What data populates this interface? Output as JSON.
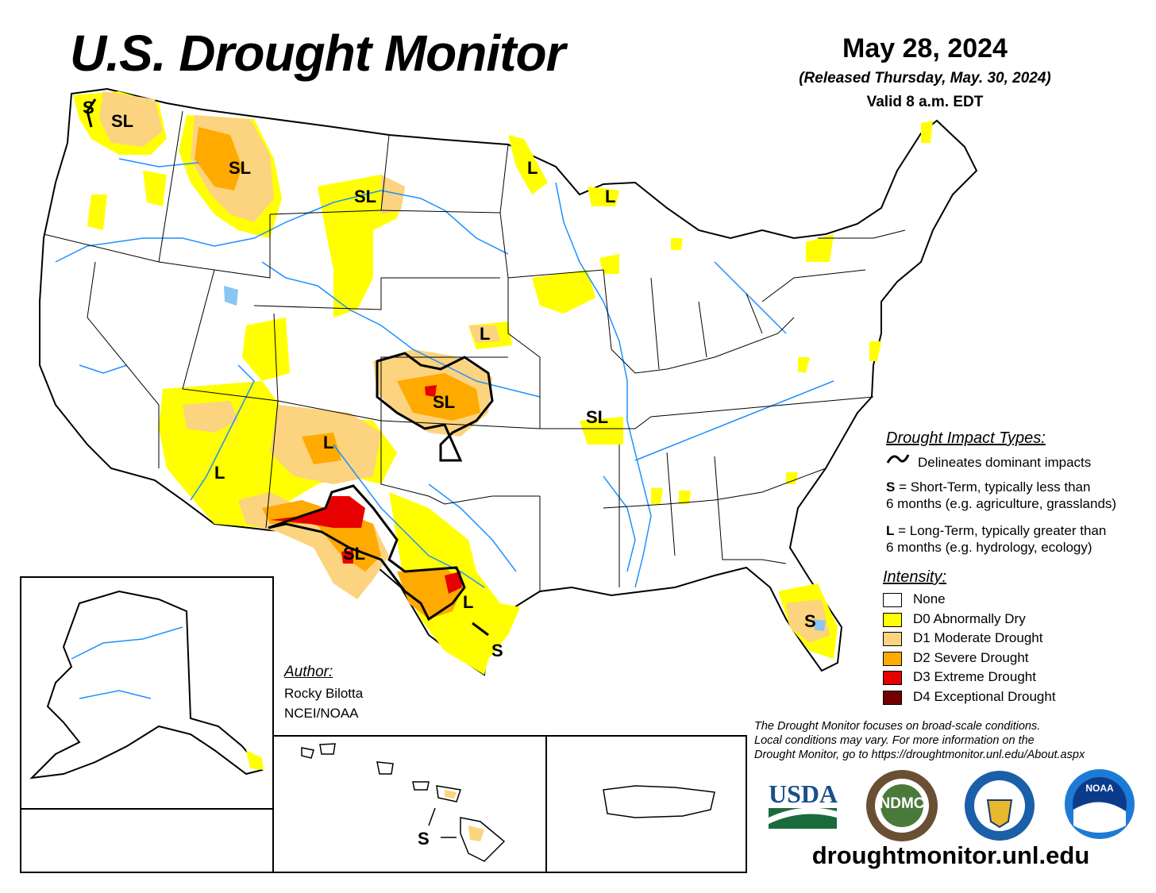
{
  "header": {
    "title": "U.S. Drought Monitor",
    "date": "May 28, 2024",
    "released": "(Released Thursday, May. 30, 2024)",
    "valid": "Valid 8 a.m. EDT"
  },
  "legend": {
    "impact_heading": "Drought Impact Types:",
    "delineates": "Delineates dominant impacts",
    "short_term_key": "S",
    "short_term_line1": " = Short-Term, typically less than",
    "short_term_line2": "6 months (e.g. agriculture, grasslands)",
    "long_term_key": "L",
    "long_term_line1": " = Long-Term, typically greater than",
    "long_term_line2": "6 months (e.g. hydrology, ecology)",
    "intensity_heading": "Intensity:",
    "levels": [
      {
        "label": "None",
        "color": "#ffffff"
      },
      {
        "label": "D0 Abnormally Dry",
        "color": "#ffff00"
      },
      {
        "label": "D1 Moderate Drought",
        "color": "#fcd37f"
      },
      {
        "label": "D2 Severe Drought",
        "color": "#ffaa00"
      },
      {
        "label": "D3 Extreme Drought",
        "color": "#e60000"
      },
      {
        "label": "D4 Exceptional Drought",
        "color": "#730000"
      }
    ]
  },
  "author": {
    "heading": "Author:",
    "name": "Rocky Bilotta",
    "org": "NCEI/NOAA"
  },
  "note": {
    "line1": "The Drought Monitor focuses on broad-scale conditions.",
    "line2": "Local conditions may vary. For more information on the",
    "line3": "Drought Monitor, go to https://droughtmonitor.unl.edu/About.aspx"
  },
  "logos": {
    "usda": "USDA",
    "ndmc": "NDMC",
    "noaa": "NOAA"
  },
  "url": "droughtmonitor.unl.edu",
  "map_labels": {
    "wa_s": "S",
    "wa_sl": "SL",
    "mt_sl": "SL",
    "nd_sl": "SL",
    "mn_l": "L",
    "wi_l": "L",
    "ne_l": "L",
    "ks_sl": "SL",
    "mo_sl": "SL",
    "nm_l": "L",
    "az_l": "L",
    "tx_sl": "SL",
    "tx_l": "L",
    "tx_s": "S",
    "fl_s": "S",
    "hi_s": "S"
  },
  "colors": {
    "river": "#1e90ff",
    "boundary": "#000000"
  }
}
